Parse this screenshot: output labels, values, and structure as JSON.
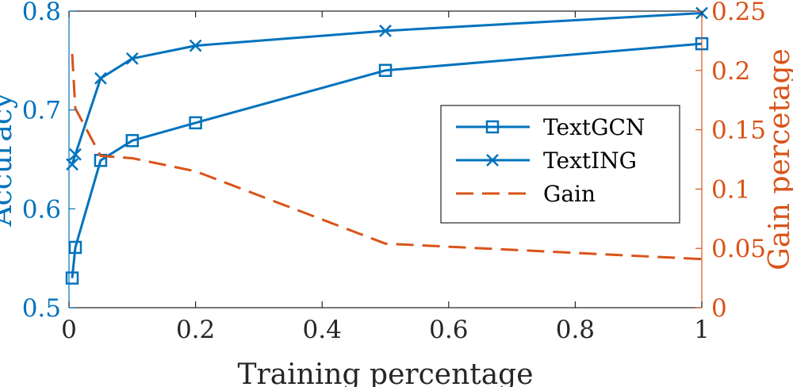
{
  "chart_data": {
    "type": "line",
    "xlabel": "Training percentage",
    "ylabel_left": "Accuracy",
    "ylabel_right": "Gain percetage",
    "xlim": [
      0,
      1
    ],
    "ylim_left": [
      0.5,
      0.8
    ],
    "ylim_right": [
      0,
      0.25
    ],
    "x_ticks": [
      "0",
      "0.2",
      "0.4",
      "0.6",
      "0.8",
      "1"
    ],
    "y_ticks_left": [
      "0.5",
      "0.6",
      "0.7",
      "0.8"
    ],
    "y_ticks_right": [
      "0",
      "0.05",
      "0.1",
      "0.15",
      "0.2",
      "0.25"
    ],
    "grid": false,
    "legend_position": "center-right",
    "colors": {
      "left_axis": "#0072BD",
      "right_axis": "#D95319",
      "frame": "#262626"
    },
    "series": [
      {
        "name": "TextGCN",
        "axis": "left",
        "marker": "square",
        "line_style": "solid",
        "color": "#0072BD",
        "x": [
          0.005,
          0.01,
          0.05,
          0.1,
          0.2,
          0.5,
          1.0
        ],
        "y": [
          0.53,
          0.561,
          0.649,
          0.669,
          0.687,
          0.74,
          0.767
        ]
      },
      {
        "name": "TextING",
        "axis": "left",
        "marker": "x",
        "line_style": "solid",
        "color": "#0072BD",
        "x": [
          0.005,
          0.01,
          0.05,
          0.1,
          0.2,
          0.5,
          1.0
        ],
        "y": [
          0.645,
          0.655,
          0.732,
          0.752,
          0.765,
          0.78,
          0.798
        ]
      },
      {
        "name": "Gain",
        "axis": "right",
        "marker": "none",
        "line_style": "dashed",
        "color": "#D95319",
        "x": [
          0.005,
          0.01,
          0.05,
          0.1,
          0.2,
          0.5,
          1.0
        ],
        "y": [
          0.214,
          0.168,
          0.128,
          0.126,
          0.115,
          0.054,
          0.041
        ]
      }
    ]
  }
}
